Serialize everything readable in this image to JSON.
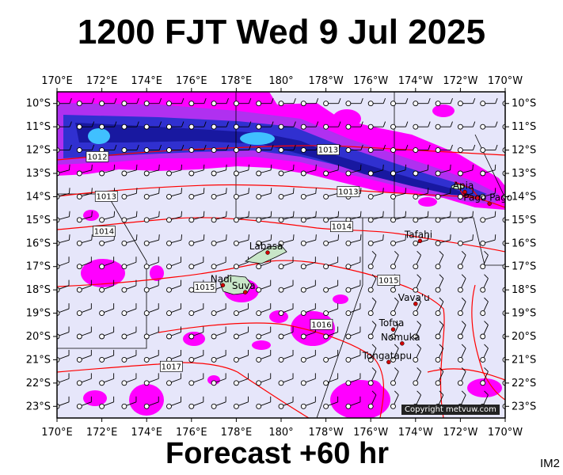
{
  "title": "1200 FJT Wed 9 Jul 2025",
  "footer": "Forecast +60 hr",
  "code": "IM2",
  "copyright": "Copyright metvuw.com",
  "colors": {
    "background": "#e6e6fa",
    "magenta": "#ff00ff",
    "purple": "#b030f0",
    "blue": "#3030d0",
    "darkblue": "#1818a0",
    "cyan": "#40c0ff",
    "isobar": "#ff0000",
    "border": "#000000"
  },
  "lon_labels": [
    "170°E",
    "172°E",
    "174°E",
    "176°E",
    "178°E",
    "180°",
    "178°W",
    "176°W",
    "174°W",
    "172°W",
    "170°W"
  ],
  "lat_labels": [
    "10°S",
    "11°S",
    "12°S",
    "13°S",
    "14°S",
    "15°S",
    "16°S",
    "17°S",
    "18°S",
    "19°S",
    "20°S",
    "21°S",
    "22°S",
    "23°S"
  ],
  "isobars": [
    {
      "label": "1012",
      "lon": 171.8,
      "lat": -12.3
    },
    {
      "label": "1013",
      "lon": 172.2,
      "lat": -14.0
    },
    {
      "label": "1013",
      "lon": 182.1,
      "lat": -12.0
    },
    {
      "label": "1013",
      "lon": 183.0,
      "lat": -13.8
    },
    {
      "label": "1014",
      "lon": 172.1,
      "lat": -15.5
    },
    {
      "label": "1014",
      "lon": 182.7,
      "lat": -15.3
    },
    {
      "label": "1015",
      "lon": 176.6,
      "lat": -17.9
    },
    {
      "label": "1015",
      "lon": 184.8,
      "lat": -17.6
    },
    {
      "label": "1016",
      "lon": 181.8,
      "lat": -19.5
    },
    {
      "label": "1017",
      "lon": 175.1,
      "lat": -21.3
    }
  ],
  "places": [
    {
      "name": "Labasa",
      "lon": 179.4,
      "lat": -16.4
    },
    {
      "name": "Nadi",
      "lon": 177.4,
      "lat": -17.8
    },
    {
      "name": "Suva",
      "lon": 178.4,
      "lat": -18.1
    },
    {
      "name": "Apia",
      "lon": 188.2,
      "lat": -13.8
    },
    {
      "name": "Pago Pago",
      "lon": 189.3,
      "lat": -14.3
    },
    {
      "name": "Tafahi",
      "lon": 186.2,
      "lat": -15.9
    },
    {
      "name": "Vava'u",
      "lon": 186.0,
      "lat": -18.6
    },
    {
      "name": "Tofua",
      "lon": 185.0,
      "lat": -19.7
    },
    {
      "name": "Nomuka",
      "lon": 185.4,
      "lat": -20.3
    },
    {
      "name": "Tongatapu",
      "lon": 184.8,
      "lat": -21.1
    }
  ]
}
